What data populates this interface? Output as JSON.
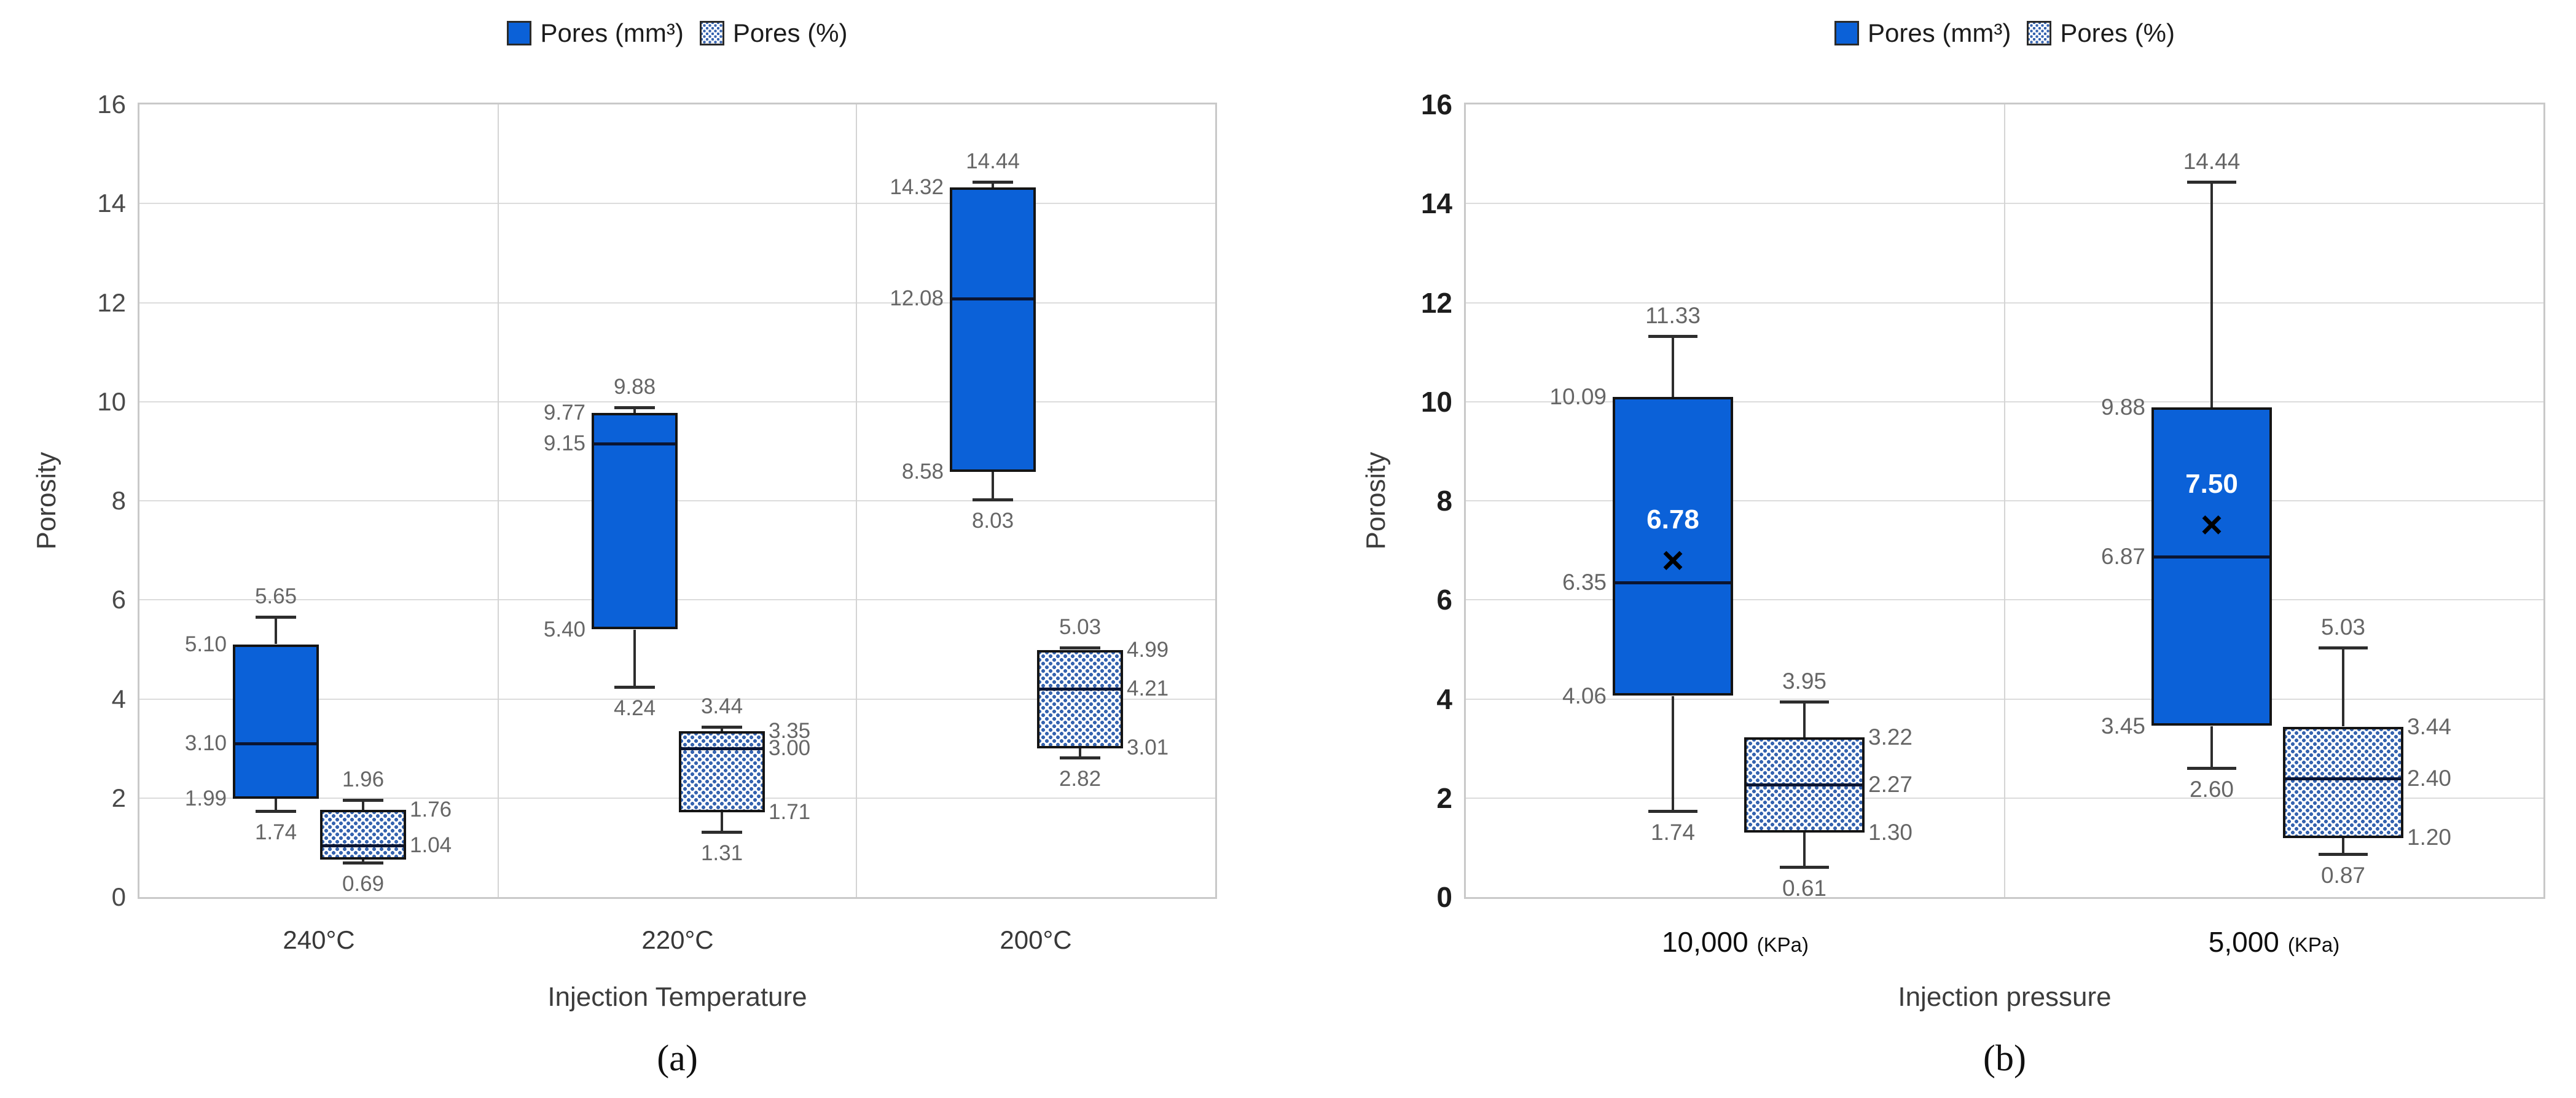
{
  "colors": {
    "solid_box_fill": "#0b61d8",
    "pattern_dot": "#3563af",
    "box_border": "#141414",
    "median_line": "#0b1532",
    "whisker": "#2d2d2d",
    "gridline": "#dcdcdc",
    "frame": "#c9c9c9",
    "value_label": "#666666",
    "mean_label": "#ffffff"
  },
  "chart_data": [
    {
      "id": "a",
      "type": "box",
      "caption": "(a)",
      "legend": [
        {
          "key": "mm3",
          "label": "Pores (mm³)"
        },
        {
          "key": "pct",
          "label": "Pores (%)"
        }
      ],
      "y_axis": {
        "title": "Porosity",
        "min": 0,
        "max": 16,
        "tick_step": 2,
        "ticks": [
          "0",
          "2",
          "4",
          "6",
          "8",
          "10",
          "12",
          "14",
          "16"
        ],
        "grid": true
      },
      "x_axis": {
        "title": "Injection Temperature"
      },
      "groups": [
        {
          "tick": {
            "value": "240°C",
            "unit": ""
          },
          "mm3": {
            "whisker_low": 1.74,
            "q1": 1.99,
            "median": 3.1,
            "q3": 5.1,
            "whisker_high": 5.65,
            "labels": {
              "whisker_high": "5.65",
              "q3": "5.10",
              "median": "3.10",
              "q1": "1.99",
              "whisker_low": "1.74"
            }
          },
          "pct": {
            "whisker_low": 0.69,
            "q1": 0.76,
            "median": 1.04,
            "q3": 1.76,
            "whisker_high": 1.96,
            "labels": {
              "whisker_high": "1.96",
              "q3": "1.76",
              "median": "1.04",
              "whisker_low": "0.69"
            }
          }
        },
        {
          "tick": {
            "value": "220°C",
            "unit": ""
          },
          "mm3": {
            "whisker_low": 4.24,
            "q1": 5.4,
            "median": 9.15,
            "q3": 9.77,
            "whisker_high": 9.88,
            "labels": {
              "whisker_high": "9.88",
              "q3": "9.77",
              "median": "9.15",
              "q1": "5.40",
              "whisker_low": "4.24"
            }
          },
          "pct": {
            "whisker_low": 1.31,
            "q1": 1.71,
            "median": 3.0,
            "q3": 3.35,
            "whisker_high": 3.44,
            "labels": {
              "whisker_high": "3.44",
              "q3": "3.35",
              "median": "3.00",
              "q1": "1.71",
              "whisker_low": "1.31"
            }
          }
        },
        {
          "tick": {
            "value": "200°C",
            "unit": ""
          },
          "mm3": {
            "whisker_low": 8.03,
            "q1": 8.58,
            "median": 12.08,
            "q3": 14.32,
            "whisker_high": 14.44,
            "labels": {
              "whisker_high": "14.44",
              "q3": "14.32",
              "median": "12.08",
              "q1": "8.58",
              "whisker_low": "8.03"
            }
          },
          "pct": {
            "whisker_low": 2.82,
            "q1": 3.01,
            "median": 4.21,
            "q3": 4.99,
            "whisker_high": 5.03,
            "labels": {
              "whisker_high": "5.03",
              "q3": "4.99",
              "median": "4.21",
              "q1": "3.01",
              "whisker_low": "2.82"
            }
          }
        }
      ]
    },
    {
      "id": "b",
      "type": "box",
      "caption": "(b)",
      "legend": [
        {
          "key": "mm3",
          "label": "Pores (mm³)"
        },
        {
          "key": "pct",
          "label": "Pores (%)"
        }
      ],
      "y_axis": {
        "title": "Porosity",
        "min": 0,
        "max": 16,
        "tick_step": 2,
        "ticks": [
          "0",
          "2",
          "4",
          "6",
          "8",
          "10",
          "12",
          "14",
          "16"
        ],
        "grid": true
      },
      "x_axis": {
        "title": "Injection pressure"
      },
      "groups": [
        {
          "tick": {
            "value": "10,000",
            "unit": "(KPa)"
          },
          "mm3": {
            "whisker_low": 1.74,
            "q1": 4.06,
            "median": 6.35,
            "q3": 10.09,
            "whisker_high": 11.33,
            "mean": 6.78,
            "mean_label": "6.78",
            "labels": {
              "whisker_high": "11.33",
              "q3": "10.09",
              "median": "6.35",
              "q1": "4.06",
              "whisker_low": "1.74"
            }
          },
          "pct": {
            "whisker_low": 0.61,
            "q1": 1.3,
            "median": 2.27,
            "q3": 3.22,
            "whisker_high": 3.95,
            "labels": {
              "whisker_high": "3.95",
              "q3": "3.22",
              "median": "2.27",
              "q1": "1.30",
              "whisker_low": "0.61"
            }
          }
        },
        {
          "tick": {
            "value": "5,000",
            "unit": "(KPa)"
          },
          "mm3": {
            "whisker_low": 2.6,
            "q1": 3.45,
            "median": 6.87,
            "q3": 9.88,
            "whisker_high": 14.44,
            "mean": 7.5,
            "mean_label": "7.50",
            "labels": {
              "whisker_high": "14.44",
              "q3": "9.88",
              "median": "6.87",
              "q1": "3.45",
              "whisker_low": "2.60"
            }
          },
          "pct": {
            "whisker_low": 0.87,
            "q1": 1.2,
            "median": 2.4,
            "q3": 3.44,
            "whisker_high": 5.03,
            "labels": {
              "whisker_high": "5.03",
              "q3": "3.44",
              "median": "2.40",
              "q1": "1.20",
              "whisker_low": "0.87"
            }
          }
        }
      ]
    }
  ]
}
